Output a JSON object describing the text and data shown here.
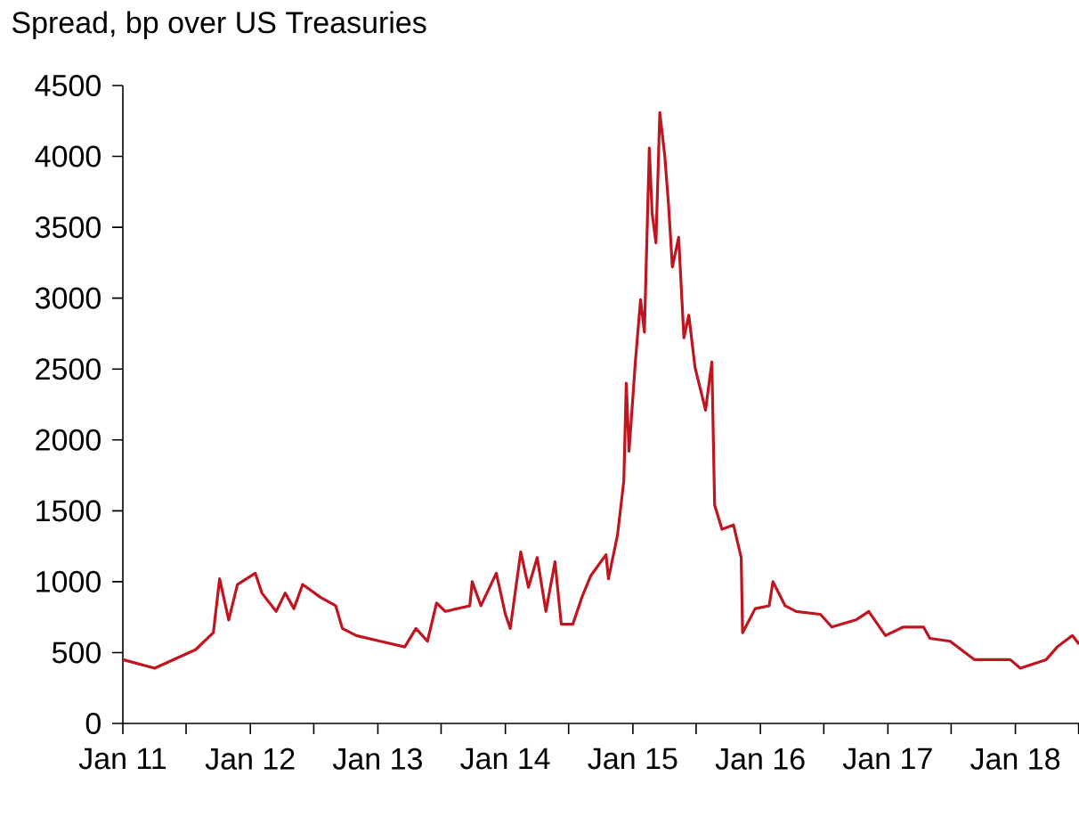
{
  "chart_data": {
    "type": "line",
    "subtitle": "Spread, bp over US Treasuries",
    "xlim": [
      "2011-01-01",
      "2018-07-02"
    ],
    "xticks": [
      {
        "value": "2011-01-01",
        "label": "Jan 11"
      },
      {
        "value": "2011-07-01",
        "label": null
      },
      {
        "value": "2012-01-01",
        "label": "Jan 12"
      },
      {
        "value": "2012-07-01",
        "label": null
      },
      {
        "value": "2013-01-01",
        "label": "Jan 13"
      },
      {
        "value": "2013-07-01",
        "label": null
      },
      {
        "value": "2014-01-01",
        "label": "Jan 14"
      },
      {
        "value": "2014-07-01",
        "label": null
      },
      {
        "value": "2015-01-01",
        "label": "Jan 15"
      },
      {
        "value": "2015-07-01",
        "label": null
      },
      {
        "value": "2016-01-01",
        "label": "Jan 16"
      },
      {
        "value": "2016-07-01",
        "label": null
      },
      {
        "value": "2017-01-01",
        "label": "Jan 17"
      },
      {
        "value": "2017-07-01",
        "label": null
      },
      {
        "value": "2018-01-01",
        "label": "Jan 18"
      },
      {
        "value": "2018-07-01",
        "label": null
      }
    ],
    "ylim": [
      0,
      4500
    ],
    "yticks": [
      0,
      500,
      1000,
      1500,
      2000,
      2500,
      3000,
      3500,
      4000,
      4500
    ],
    "grid": false,
    "marker": "none",
    "line_style": "solid",
    "series": [
      {
        "color": "#c0141e",
        "x": [
          "2011-01-01",
          "2011-04-02",
          "2011-07-28",
          "2011-09-17",
          "2011-10-05",
          "2011-10-31",
          "2011-11-25",
          "2012-01-15",
          "2012-02-03",
          "2012-03-15",
          "2012-04-10",
          "2012-05-05",
          "2012-05-30",
          "2012-07-20",
          "2012-09-02",
          "2012-09-21",
          "2012-10-31",
          "2013-01-08",
          "2013-03-19",
          "2013-04-20",
          "2013-05-23",
          "2013-06-18",
          "2013-07-13",
          "2013-09-21",
          "2013-09-28",
          "2013-10-23",
          "2013-12-06",
          "2014-01-01",
          "2014-01-15",
          "2014-02-14",
          "2014-03-08",
          "2014-04-02",
          "2014-04-27",
          "2014-05-23",
          "2014-06-10",
          "2014-07-13",
          "2014-08-08",
          "2014-09-02",
          "2014-10-16",
          "2014-10-23",
          "2014-11-18",
          "2014-12-06",
          "2014-12-13",
          "2014-12-21",
          "2015-01-08",
          "2015-01-23",
          "2015-02-03",
          "2015-02-17",
          "2015-02-25",
          "2015-03-08",
          "2015-03-19",
          "2015-04-02",
          "2015-04-13",
          "2015-04-24",
          "2015-05-12",
          "2015-05-27",
          "2015-06-10",
          "2015-06-28",
          "2015-07-28",
          "2015-08-15",
          "2015-08-23",
          "2015-09-13",
          "2015-10-16",
          "2015-11-07",
          "2015-11-11",
          "2015-12-17",
          "2016-01-26",
          "2016-02-06",
          "2016-03-12",
          "2016-04-13",
          "2016-06-21",
          "2016-07-24",
          "2016-10-01",
          "2016-11-07",
          "2016-12-25",
          "2017-02-14",
          "2017-04-13",
          "2017-05-01",
          "2017-06-28",
          "2017-09-06",
          "2017-12-17",
          "2018-01-15",
          "2018-03-30",
          "2018-05-01",
          "2018-06-13",
          "2018-07-02"
        ],
        "values": [
          450,
          390,
          520,
          640,
          1020,
          730,
          980,
          1060,
          920,
          790,
          920,
          810,
          980,
          890,
          830,
          670,
          620,
          580,
          540,
          670,
          580,
          850,
          790,
          830,
          1000,
          830,
          1060,
          770,
          670,
          1210,
          960,
          1170,
          790,
          1140,
          700,
          700,
          890,
          1040,
          1190,
          1020,
          1330,
          1710,
          2400,
          1920,
          2550,
          2990,
          2760,
          4060,
          3600,
          3390,
          4310,
          4010,
          3660,
          3220,
          3430,
          2720,
          2880,
          2510,
          2210,
          2550,
          1540,
          1370,
          1400,
          1170,
          640,
          810,
          830,
          1000,
          830,
          790,
          770,
          680,
          730,
          790,
          620,
          680,
          680,
          600,
          580,
          450,
          450,
          390,
          450,
          540,
          620,
          560
        ]
      }
    ]
  }
}
